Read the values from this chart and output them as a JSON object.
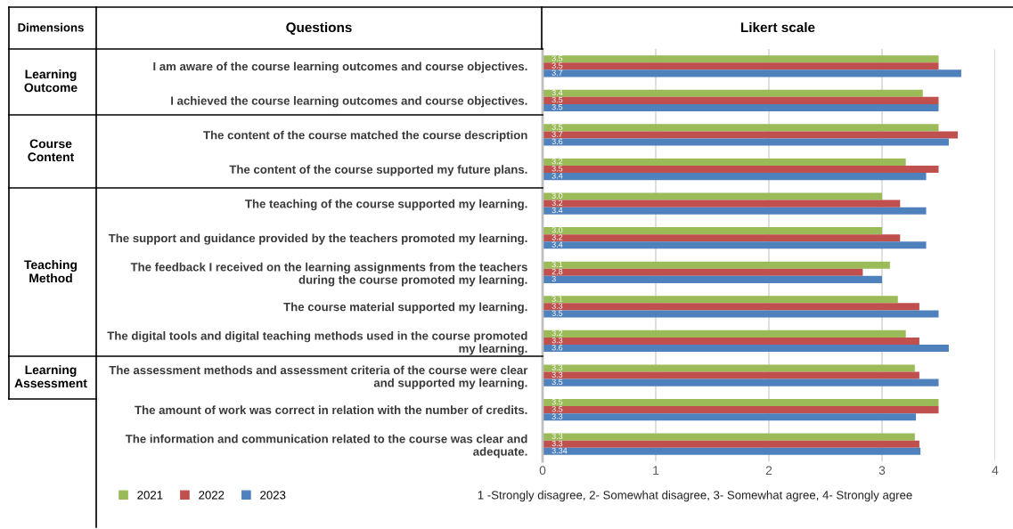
{
  "chart_data": {
    "type": "bar",
    "orientation": "horizontal",
    "title": "Likert scale",
    "xlabel": "1 -Strongly disagree, 2- Somewhat disagree, 3- Somewhat agree, 4- Strongly agree",
    "categories": [
      "I am aware of the course learning outcomes and course objectives.",
      "I achieved the course learning outcomes and course objectives.",
      "The content of the course matched the course description",
      "The content of the course supported my future plans.",
      "The teaching of the course supported my learning.",
      "The support and guidance provided by the teachers promoted my learning.",
      "The feedback I received on the learning assignments from the teachers\nduring the course promoted my learning.",
      "The course material supported my learning.",
      "The digital tools and digital teaching methods used in the course promoted\nmy learning.",
      "The assessment methods and assessment criteria of the course were clear\nand supported my learning.",
      "The amount of work was correct in relation with the number of credits.",
      "The information and communication related to the course was clear and\nadequate."
    ],
    "series": [
      {
        "name": "2021",
        "color": "#9bbb59",
        "values": [
          3.5,
          3.36,
          3.5,
          3.21,
          3.0,
          3.0,
          3.07,
          3.14,
          3.21,
          3.29,
          3.5,
          3.29
        ],
        "value_labels": [
          "3.5",
          "3.4",
          "3.5",
          "3.2",
          "3.0",
          "3.0",
          "3.1",
          "3.1",
          "3.2",
          "3.3",
          "3.5",
          "3.3"
        ]
      },
      {
        "name": "2022",
        "color": "#c0504d",
        "values": [
          3.5,
          3.5,
          3.67,
          3.5,
          3.16,
          3.16,
          2.83,
          3.33,
          3.33,
          3.33,
          3.5,
          3.33
        ],
        "value_labels": [
          "3.5",
          "3.5",
          "3.7",
          "3.5",
          "3.2",
          "3.2",
          "2.8",
          "3.3",
          "3.3",
          "3.3",
          "3.5",
          "3.3"
        ]
      },
      {
        "name": "2023",
        "color": "#4f81bd",
        "values": [
          3.7,
          3.5,
          3.59,
          3.39,
          3.39,
          3.39,
          3.0,
          3.5,
          3.59,
          3.5,
          3.3,
          3.34
        ],
        "value_labels": [
          "3.7",
          "3.5",
          "3.6",
          "3.4",
          "3.4",
          "3.4",
          "3",
          "3.5",
          "3.6",
          "3.5",
          "3.3",
          "3.34"
        ]
      }
    ],
    "xlim": [
      0,
      4
    ],
    "xticks": [
      0,
      1,
      2,
      3,
      4
    ],
    "grid": "x",
    "legend": "bottom left",
    "annotations": [
      "Dimensions",
      "Questions",
      "Learning\nOutcome",
      "Course\nContent",
      "Teaching\nMethod",
      "Learning\nAssessment"
    ]
  }
}
